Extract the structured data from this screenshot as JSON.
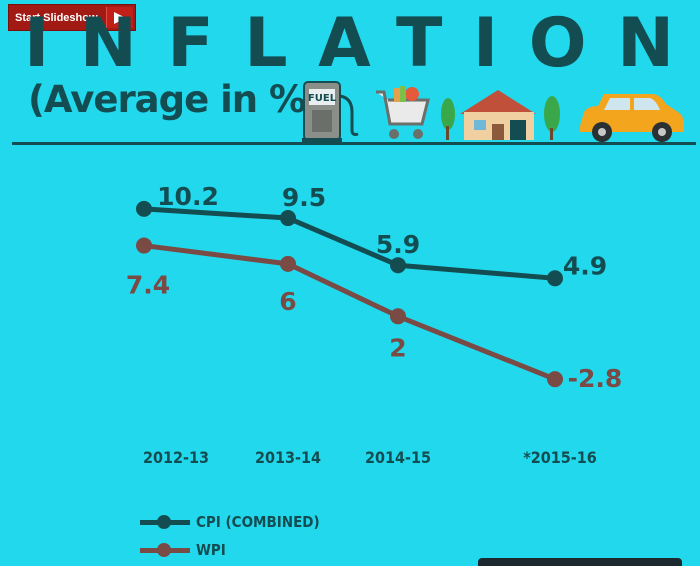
{
  "slideshow": {
    "label": "Start Slideshow"
  },
  "title": "INFLATION",
  "subtitle": "(Average in %)",
  "icons": [
    "fuel-pump-icon",
    "grocery-cart-icon",
    "house-icon",
    "car-icon"
  ],
  "icon_text": {
    "fuel": "FUEL"
  },
  "colors": {
    "background": "#21d8ec",
    "cpi": "#134d52",
    "wpi": "#7a4a45",
    "text": "#134d52"
  },
  "chart_data": {
    "type": "line",
    "categories": [
      "2012-13",
      "2013-14",
      "2014-15",
      "*2015-16"
    ],
    "series": [
      {
        "name": "CPI (COMBINED)",
        "values": [
          10.2,
          9.5,
          5.9,
          4.9
        ],
        "labels": [
          "10.2",
          "9.5",
          "5.9",
          "4.9"
        ],
        "color": "#134d52"
      },
      {
        "name": "WPI",
        "values": [
          7.4,
          6,
          2,
          -2.8
        ],
        "labels": [
          "7.4",
          "6",
          "2",
          "-2.8"
        ],
        "color": "#7a4a45"
      }
    ],
    "legend": "bottom-left",
    "grid": false
  }
}
